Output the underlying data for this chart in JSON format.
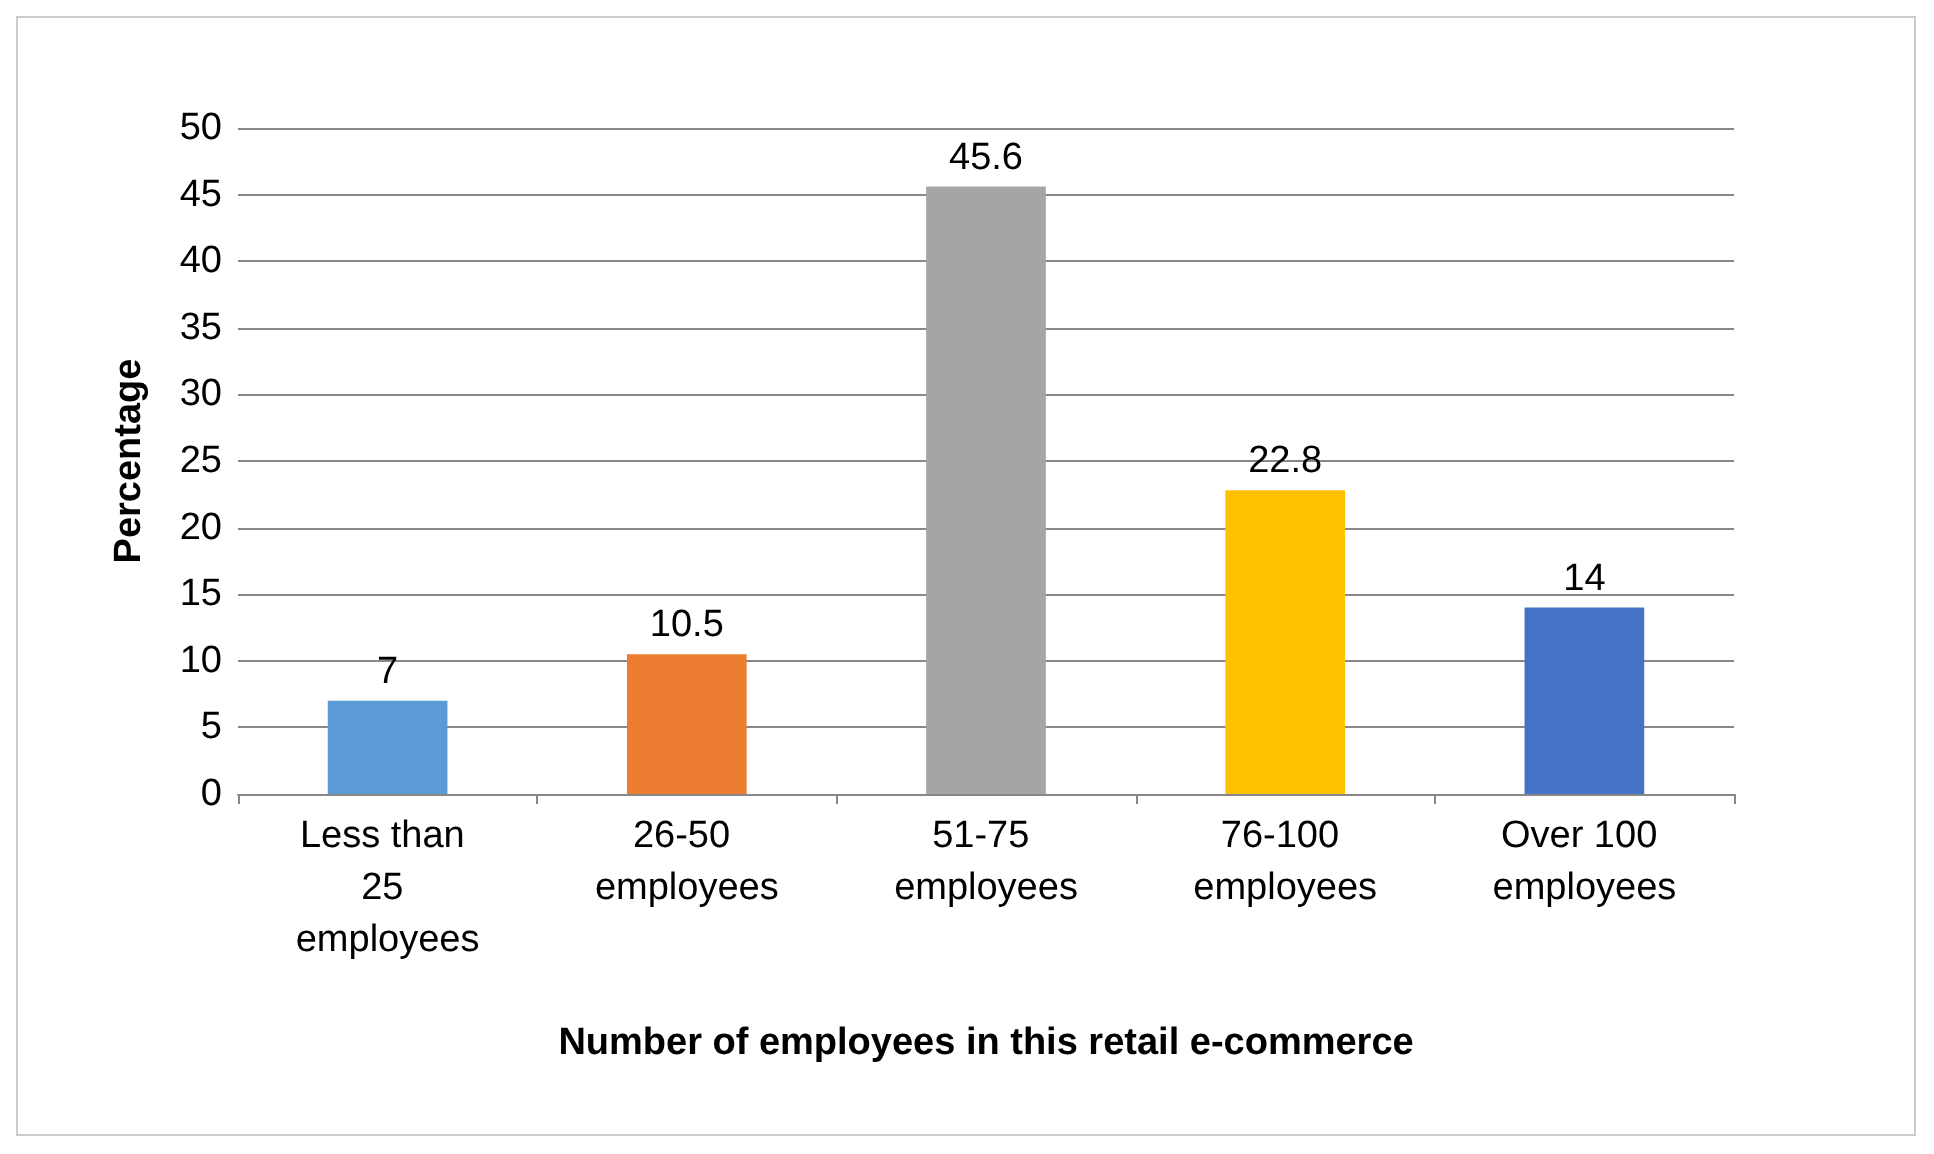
{
  "chart_data": {
    "type": "bar",
    "xlabel": "Number of employees in this retail e-commerce",
    "ylabel": "Percentage",
    "categories": [
      "Less than 25 employees",
      "26-50 employees",
      "51-75 employees",
      "76-100 employees",
      "Over 100 employees"
    ],
    "values": [
      7,
      10.5,
      45.6,
      22.8,
      14
    ],
    "colors": [
      "#5b9bd5",
      "#ed7d31",
      "#a5a5a5",
      "#ffc000",
      "#4472c4"
    ],
    "ylim": [
      0,
      50
    ],
    "yticks": [
      0,
      5,
      10,
      15,
      20,
      25,
      30,
      35,
      40,
      45,
      50
    ],
    "grid": "y",
    "data_labels": true
  }
}
